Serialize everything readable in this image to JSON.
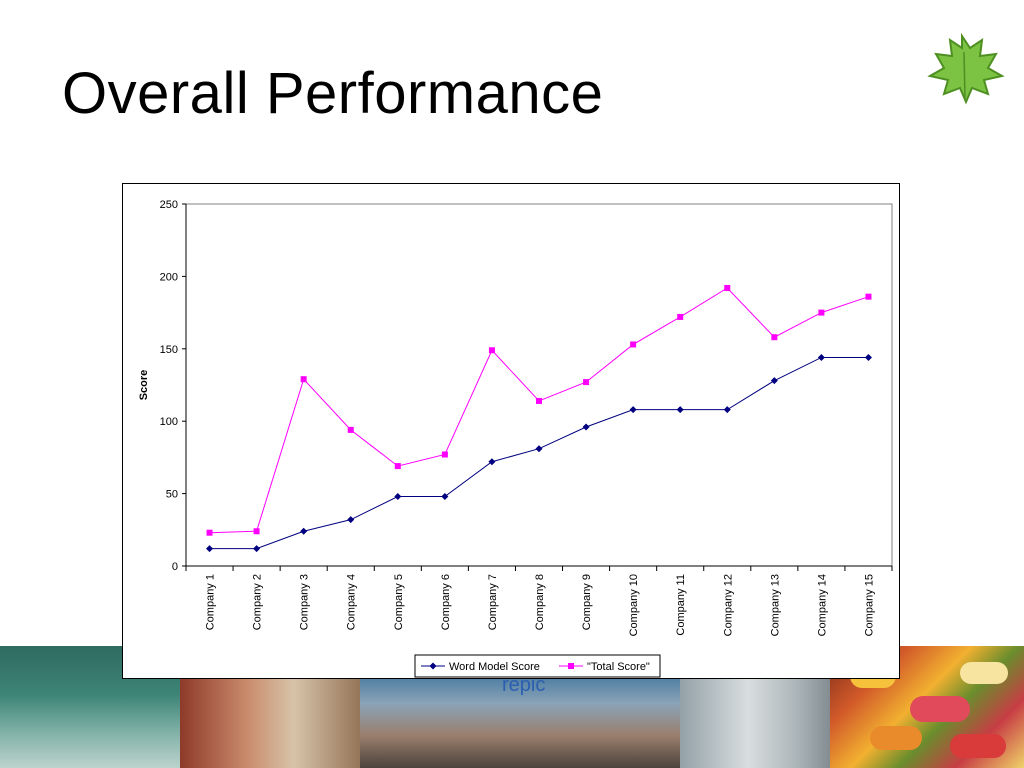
{
  "slide": {
    "title": "Overall Performance",
    "banner_text": "repic"
  },
  "colors": {
    "word_model": "#000080",
    "total_score": "#ff00ff",
    "plot_border": "#808080"
  },
  "chart_data": {
    "type": "line",
    "title": "",
    "xlabel": "",
    "ylabel": "Score",
    "ylim": [
      0,
      250
    ],
    "yticks": [
      0,
      50,
      100,
      150,
      200,
      250
    ],
    "grid": false,
    "legend_position": "bottom",
    "categories": [
      "Company 1",
      "Company 2",
      "Company 3",
      "Company 4",
      "Company 5",
      "Company 6",
      "Company 7",
      "Company 8",
      "Company 9",
      "Company 10",
      "Company 11",
      "Company 12",
      "Company 13",
      "Company 14",
      "Company 15"
    ],
    "series": [
      {
        "name": "Word Model Score",
        "color": "#000080",
        "marker": "diamond",
        "values": [
          12,
          12,
          24,
          32,
          48,
          48,
          72,
          81,
          96,
          108,
          108,
          108,
          128,
          144,
          144
        ]
      },
      {
        "name": "\"Total Score\"",
        "color": "#ff00ff",
        "marker": "square",
        "values": [
          23,
          24,
          129,
          94,
          69,
          77,
          149,
          114,
          127,
          153,
          172,
          192,
          158,
          175,
          186
        ]
      }
    ]
  }
}
